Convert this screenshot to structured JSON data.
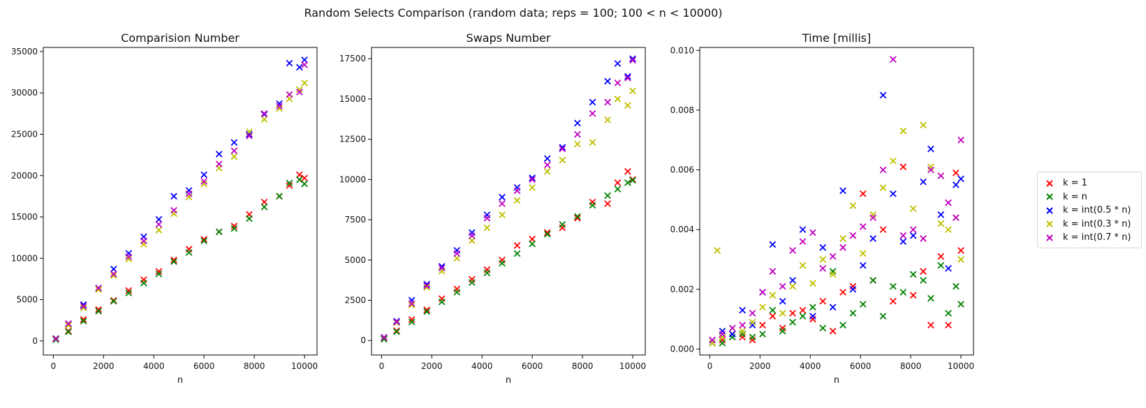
{
  "figure_title": "Random Selects Comparison (random data;  reps = 100;  100 < n < 10000)",
  "legend": [
    {
      "label": "k = 1",
      "color": "#ff0000"
    },
    {
      "label": "k = n",
      "color": "#008000"
    },
    {
      "label": "k = int(0.5 * n)",
      "color": "#0000ff"
    },
    {
      "label": "k = int(0.3 * n)",
      "color": "#bfbf00"
    },
    {
      "label": "k = int(0.7 * n)",
      "color": "#bf00bf"
    }
  ],
  "chart_data": [
    {
      "type": "scatter",
      "title": "Comparision Number",
      "xlabel": "n",
      "ylabel": "",
      "xlim": [
        -400,
        10500
      ],
      "ylim": [
        -1700,
        35500
      ],
      "xticks": [
        0,
        2000,
        4000,
        6000,
        8000,
        10000
      ],
      "yticks": [
        0,
        5000,
        10000,
        15000,
        20000,
        25000,
        30000,
        35000
      ],
      "series": [
        {
          "name": "k = 1",
          "color": "#ff0000",
          "marker": "x",
          "x": [
            100,
            600,
            1200,
            1800,
            2400,
            3000,
            3600,
            4200,
            4800,
            5400,
            6000,
            6600,
            7200,
            7800,
            8400,
            9000,
            9400,
            9800,
            10000
          ],
          "y": [
            200,
            1200,
            2600,
            3800,
            4900,
            6100,
            7400,
            8400,
            9800,
            11100,
            12300,
            13200,
            13900,
            15300,
            16800,
            17500,
            18800,
            20100,
            19700
          ]
        },
        {
          "name": "k = n",
          "color": "#008000",
          "marker": "x",
          "x": [
            100,
            600,
            1200,
            1800,
            2400,
            3000,
            3600,
            4200,
            4800,
            5400,
            6000,
            6600,
            7200,
            7800,
            8400,
            9000,
            9400,
            9800,
            10000
          ],
          "y": [
            150,
            1100,
            2400,
            3600,
            4800,
            5800,
            7000,
            8100,
            9600,
            10700,
            12100,
            13200,
            13600,
            14800,
            16200,
            17500,
            19100,
            19500,
            19000
          ]
        },
        {
          "name": "k = int(0.5 * n)",
          "color": "#0000ff",
          "marker": "x",
          "x": [
            100,
            600,
            1200,
            1800,
            2400,
            3000,
            3600,
            4200,
            4800,
            5400,
            6000,
            6600,
            7200,
            7800,
            8400,
            9000,
            9400,
            9800,
            10000
          ],
          "y": [
            300,
            2000,
            4400,
            6400,
            8700,
            10600,
            12600,
            14700,
            17500,
            18200,
            20100,
            22600,
            24000,
            25000,
            27400,
            28700,
            33600,
            33100,
            34000
          ]
        },
        {
          "name": "k = int(0.3 * n)",
          "color": "#bfbf00",
          "marker": "x",
          "x": [
            100,
            600,
            1200,
            1800,
            2400,
            3000,
            3600,
            4200,
            4800,
            5400,
            6000,
            6600,
            7200,
            7800,
            8400,
            9000,
            9400,
            9800,
            10000
          ],
          "y": [
            280,
            1900,
            4000,
            6200,
            7900,
            9900,
            11700,
            13400,
            15400,
            17400,
            19000,
            20900,
            22300,
            25300,
            26800,
            28100,
            29300,
            30400,
            31200
          ]
        },
        {
          "name": "k = int(0.7 * n)",
          "color": "#bf00bf",
          "marker": "x",
          "x": [
            100,
            600,
            1200,
            1800,
            2400,
            3000,
            3600,
            4200,
            4800,
            5400,
            6000,
            6600,
            7200,
            7800,
            8400,
            9000,
            9400,
            9800,
            10000
          ],
          "y": [
            290,
            2100,
            4200,
            6400,
            8100,
            10200,
            12100,
            14100,
            15800,
            17800,
            19300,
            21400,
            23000,
            24800,
            27500,
            28400,
            29800,
            30100,
            33400
          ]
        }
      ]
    },
    {
      "type": "scatter",
      "title": "Swaps Number",
      "xlabel": "n",
      "ylabel": "",
      "xlim": [
        -400,
        10500
      ],
      "ylim": [
        -900,
        18200
      ],
      "xticks": [
        0,
        2000,
        4000,
        6000,
        8000,
        10000
      ],
      "yticks": [
        0,
        2500,
        5000,
        7500,
        10000,
        12500,
        15000,
        17500
      ],
      "series": [
        {
          "name": "k = 1",
          "color": "#ff0000",
          "marker": "x",
          "x": [
            100,
            600,
            1200,
            1800,
            2400,
            3000,
            3600,
            4200,
            4800,
            5400,
            6000,
            6600,
            7200,
            7800,
            8400,
            9000,
            9400,
            9800,
            10000
          ],
          "y": [
            100,
            600,
            1300,
            1900,
            2600,
            3200,
            3800,
            4400,
            5000,
            5900,
            6300,
            6700,
            7000,
            7600,
            8600,
            8500,
            9800,
            10500,
            10000
          ]
        },
        {
          "name": "k = n",
          "color": "#008000",
          "marker": "x",
          "x": [
            100,
            600,
            1200,
            1800,
            2400,
            3000,
            3600,
            4200,
            4800,
            5400,
            6000,
            6600,
            7200,
            7800,
            8400,
            9000,
            9400,
            9800,
            10000
          ],
          "y": [
            80,
            550,
            1150,
            1800,
            2400,
            3000,
            3600,
            4200,
            4800,
            5400,
            6000,
            6600,
            7200,
            7700,
            8400,
            9000,
            9400,
            9800,
            9950
          ]
        },
        {
          "name": "k = int(0.5 * n)",
          "color": "#0000ff",
          "marker": "x",
          "x": [
            100,
            600,
            1200,
            1800,
            2400,
            3000,
            3600,
            4200,
            4800,
            5400,
            6000,
            6600,
            7200,
            7800,
            8400,
            9000,
            9400,
            9800,
            10000
          ],
          "y": [
            200,
            1200,
            2500,
            3500,
            4600,
            5600,
            6700,
            7800,
            8900,
            9500,
            10100,
            11300,
            12000,
            13500,
            14800,
            16100,
            17200,
            16400,
            17500
          ]
        },
        {
          "name": "k = int(0.3 * n)",
          "color": "#bfbf00",
          "marker": "x",
          "x": [
            100,
            600,
            1200,
            1800,
            2400,
            3000,
            3600,
            4200,
            4800,
            5400,
            6000,
            6600,
            7200,
            7800,
            8400,
            9000,
            9400,
            9800,
            10000
          ],
          "y": [
            180,
            1100,
            2200,
            3300,
            4300,
            5100,
            6200,
            7000,
            7800,
            8700,
            9500,
            10500,
            11200,
            12200,
            12300,
            13700,
            15000,
            14600,
            15500
          ]
        },
        {
          "name": "k = int(0.7 * n)",
          "color": "#bf00bf",
          "marker": "x",
          "x": [
            100,
            600,
            1200,
            1800,
            2400,
            3000,
            3600,
            4200,
            4800,
            5400,
            6000,
            6600,
            7200,
            7800,
            8400,
            9000,
            9400,
            9800,
            10000
          ],
          "y": [
            190,
            1150,
            2300,
            3400,
            4500,
            5400,
            6500,
            7600,
            8500,
            9300,
            10000,
            10900,
            11900,
            12800,
            14100,
            14800,
            16000,
            16300,
            17400
          ]
        }
      ]
    },
    {
      "type": "scatter",
      "title": "Time [millis]",
      "xlabel": "n",
      "ylabel": "",
      "xlim": [
        -400,
        10500
      ],
      "ylim": [
        -0.0002,
        0.0101
      ],
      "xticks": [
        0,
        2000,
        4000,
        6000,
        8000,
        10000
      ],
      "yticks": [
        0.0,
        0.002,
        0.004,
        0.006,
        0.008,
        0.01
      ],
      "series": [
        {
          "name": "k = 1",
          "color": "#ff0000",
          "marker": "x",
          "x": [
            100,
            500,
            900,
            1300,
            1700,
            2100,
            2500,
            2900,
            3300,
            3700,
            4100,
            4500,
            4900,
            5300,
            5700,
            6100,
            6500,
            6900,
            7300,
            7700,
            8100,
            8500,
            8800,
            9200,
            9500,
            9800,
            10000
          ],
          "y": [
            0.0002,
            0.0003,
            0.0005,
            0.0004,
            0.0003,
            0.0008,
            0.0011,
            0.0007,
            0.0012,
            0.0013,
            0.001,
            0.0016,
            0.0006,
            0.0019,
            0.0021,
            0.0052,
            0.0023,
            0.004,
            0.0016,
            0.0061,
            0.0018,
            0.0026,
            0.0008,
            0.0031,
            0.0008,
            0.0059,
            0.0033
          ]
        },
        {
          "name": "k = n",
          "color": "#008000",
          "marker": "x",
          "x": [
            100,
            500,
            900,
            1300,
            1700,
            2100,
            2500,
            2900,
            3300,
            3700,
            4100,
            4500,
            4900,
            5300,
            5700,
            6100,
            6500,
            6900,
            7300,
            7700,
            8100,
            8500,
            8800,
            9200,
            9500,
            9800,
            10000
          ],
          "y": [
            0.0002,
            0.0002,
            0.0004,
            0.0005,
            0.0004,
            0.0005,
            0.0013,
            0.0006,
            0.0009,
            0.0011,
            0.0014,
            0.0007,
            0.0026,
            0.0008,
            0.0012,
            0.0015,
            0.0023,
            0.0011,
            0.0021,
            0.0019,
            0.0025,
            0.0023,
            0.0017,
            0.0028,
            0.0012,
            0.0021,
            0.0015
          ]
        },
        {
          "name": "k = int(0.5 * n)",
          "color": "#0000ff",
          "marker": "x",
          "x": [
            100,
            500,
            900,
            1300,
            1700,
            2100,
            2500,
            2900,
            3300,
            3700,
            4100,
            4500,
            4900,
            5300,
            5700,
            6100,
            6500,
            6900,
            7300,
            7700,
            8100,
            8500,
            8800,
            9200,
            9500,
            9800,
            10000
          ],
          "y": [
            0.0003,
            0.0006,
            0.0005,
            0.0013,
            0.0008,
            0.0019,
            0.0035,
            0.0016,
            0.0023,
            0.004,
            0.0011,
            0.0034,
            0.0014,
            0.0053,
            0.002,
            0.0028,
            0.0037,
            0.0085,
            0.0052,
            0.0036,
            0.0038,
            0.0056,
            0.0067,
            0.0045,
            0.0027,
            0.0055,
            0.0057
          ]
        },
        {
          "name": "k = int(0.3 * n)",
          "color": "#bfbf00",
          "marker": "x",
          "x": [
            100,
            300,
            500,
            900,
            1300,
            1700,
            2100,
            2500,
            2900,
            3300,
            3700,
            4100,
            4500,
            4900,
            5300,
            5700,
            6100,
            6500,
            6900,
            7300,
            7700,
            8100,
            8500,
            8800,
            9200,
            9500,
            9800,
            10000
          ],
          "y": [
            0.0002,
            0.0033,
            0.0004,
            0.0007,
            0.0006,
            0.0009,
            0.0014,
            0.0018,
            0.0012,
            0.0021,
            0.0028,
            0.0022,
            0.003,
            0.0025,
            0.0037,
            0.0048,
            0.0032,
            0.0045,
            0.0054,
            0.0063,
            0.0073,
            0.0047,
            0.0075,
            0.0061,
            0.0042,
            0.004,
            0.0044,
            0.003
          ]
        },
        {
          "name": "k = int(0.7 * n)",
          "color": "#bf00bf",
          "marker": "x",
          "x": [
            100,
            500,
            900,
            1300,
            1700,
            2100,
            2500,
            2900,
            3300,
            3700,
            4100,
            4500,
            4900,
            5300,
            5700,
            6100,
            6500,
            6900,
            7300,
            7700,
            8100,
            8500,
            8800,
            9200,
            9500,
            9800,
            10000
          ],
          "y": [
            0.0003,
            0.0005,
            0.0007,
            0.0008,
            0.0012,
            0.0019,
            0.0026,
            0.0021,
            0.0033,
            0.0036,
            0.0039,
            0.0027,
            0.0031,
            0.0034,
            0.0038,
            0.0041,
            0.0044,
            0.006,
            0.0097,
            0.0038,
            0.004,
            0.0037,
            0.006,
            0.0058,
            0.0049,
            0.0044,
            0.007
          ]
        }
      ]
    }
  ]
}
